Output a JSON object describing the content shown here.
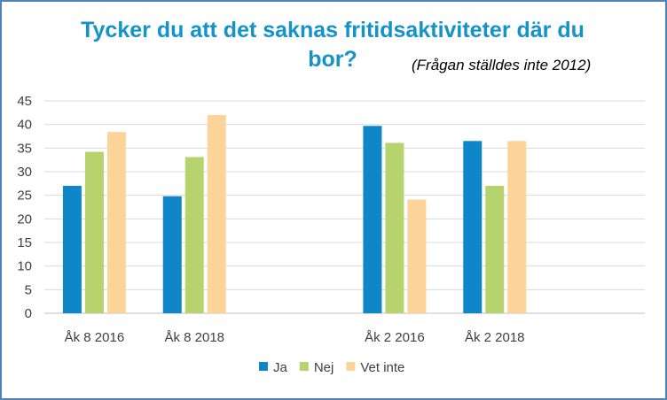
{
  "chart_data": {
    "type": "bar",
    "title": "Tycker du att det saknas fritidsaktiviteter där du bor?",
    "subtitle": "(Frågan ställdes inte 2012)",
    "categories": [
      "Åk 8 2016",
      "Åk 8 2018",
      "",
      "Åk 2 2016",
      "Åk 2 2018",
      ""
    ],
    "series": [
      {
        "name": "Ja",
        "color": "#0e86c8",
        "values": [
          27,
          24.8,
          null,
          39.7,
          36.5,
          null
        ]
      },
      {
        "name": "Nej",
        "color": "#b7d36e",
        "values": [
          34.2,
          33.1,
          null,
          36.1,
          27,
          null
        ]
      },
      {
        "name": "Vet inte",
        "color": "#fcd49a",
        "values": [
          38.4,
          42,
          null,
          24.1,
          36.5,
          null
        ]
      }
    ],
    "ylim": [
      0,
      45
    ],
    "yticks": [
      "0",
      "5",
      "10",
      "15",
      "20",
      "25",
      "30",
      "35",
      "40",
      "45"
    ],
    "grid": true,
    "legend_position": "bottom"
  }
}
